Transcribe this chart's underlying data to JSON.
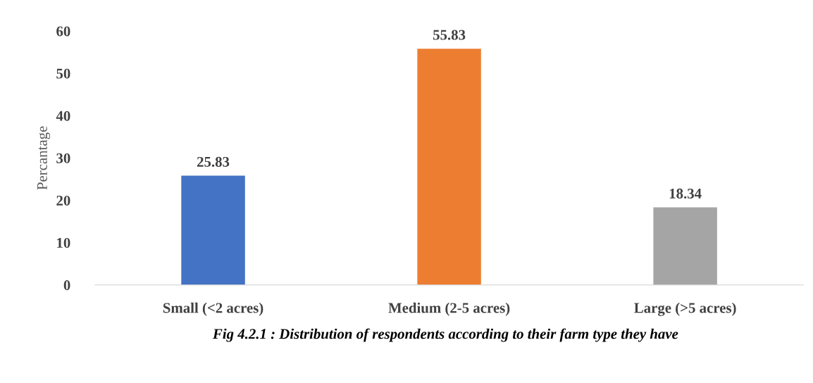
{
  "chart_data": {
    "type": "bar",
    "ylabel": "Percantage",
    "categories": [
      "Small (<2 acres)",
      "Medium (2-5 acres)",
      "Large (>5 acres)"
    ],
    "values": [
      25.83,
      55.83,
      18.34
    ],
    "colors": [
      "#4472c4",
      "#ed7d31",
      "#a5a5a5"
    ],
    "data_labels": true,
    "ylim": [
      0,
      60
    ],
    "yticks": [
      0,
      10,
      20,
      30,
      40,
      50,
      60
    ],
    "grid": false,
    "legend": false,
    "annotations": [
      "Fig 4.2.1 : Distribution of respondents according to their farm type they have"
    ]
  }
}
